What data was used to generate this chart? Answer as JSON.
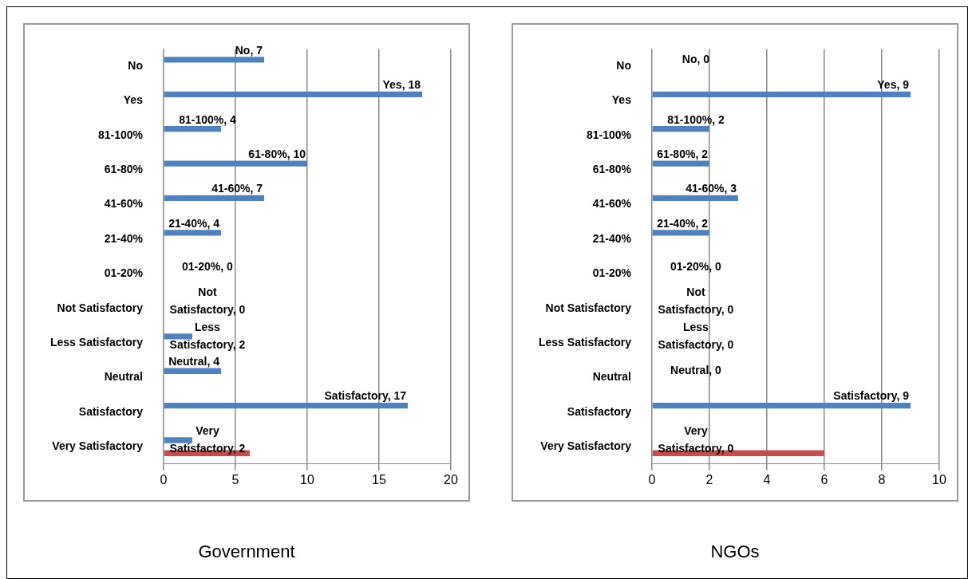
{
  "chart_data": [
    {
      "type": "bar",
      "orientation": "horizontal",
      "title": "Government",
      "categories": [
        "No",
        "Yes",
        "81-100%",
        "61-80%",
        "41-60%",
        "21-40%",
        "01-20%",
        "Not Satisfactory",
        "Less Satisfactory",
        "Neutral",
        "Satisfactory",
        "Very Satisfactory"
      ],
      "series": [
        {
          "color": "#4f81bd",
          "values": [
            7,
            18,
            4,
            10,
            7,
            4,
            0,
            0,
            2,
            4,
            17,
            2
          ],
          "value_labels": [
            "No, 7",
            "Yes, 18",
            "81-100%, 4",
            "61-80%, 10",
            "41-60%, 7",
            "21-40%, 4",
            "01-20%, 0",
            "Not Satisfactory, 0",
            "Less Satisfactory, 2",
            "Neutral, 4",
            "Satisfactory, 17",
            "Very Satisfactory, 2"
          ]
        },
        {
          "color": "#c0504d",
          "values": [
            null,
            null,
            null,
            null,
            null,
            null,
            null,
            null,
            null,
            null,
            null,
            6
          ]
        }
      ],
      "xlim": [
        0,
        20
      ],
      "xticks": [
        0,
        5,
        10,
        15,
        20
      ],
      "grid": "x",
      "legend": false
    },
    {
      "type": "bar",
      "orientation": "horizontal",
      "title": "NGOs",
      "categories": [
        "No",
        "Yes",
        "81-100%",
        "61-80%",
        "41-60%",
        "21-40%",
        "01-20%",
        "Not Satisfactory",
        "Less Satisfactory",
        "Neutral",
        "Satisfactory",
        "Very Satisfactory"
      ],
      "series": [
        {
          "color": "#4f81bd",
          "values": [
            0,
            9,
            2,
            2,
            3,
            2,
            0,
            0,
            0,
            0,
            9,
            0
          ],
          "value_labels": [
            "No, 0",
            "Yes, 9",
            "81-100%, 2",
            "61-80%, 2",
            "41-60%, 3",
            "21-40%, 2",
            "01-20%, 0",
            "Not Satisfactory, 0",
            "Less Satisfactory, 0",
            "Neutral, 0",
            "Satisfactory, 9",
            "Very Satisfactory, 0"
          ]
        },
        {
          "color": "#c0504d",
          "values": [
            null,
            null,
            null,
            null,
            null,
            null,
            null,
            null,
            null,
            null,
            null,
            6
          ]
        }
      ],
      "xlim": [
        0,
        10
      ],
      "xticks": [
        0,
        2,
        4,
        6,
        8,
        10
      ],
      "grid": "x",
      "legend": false
    }
  ]
}
